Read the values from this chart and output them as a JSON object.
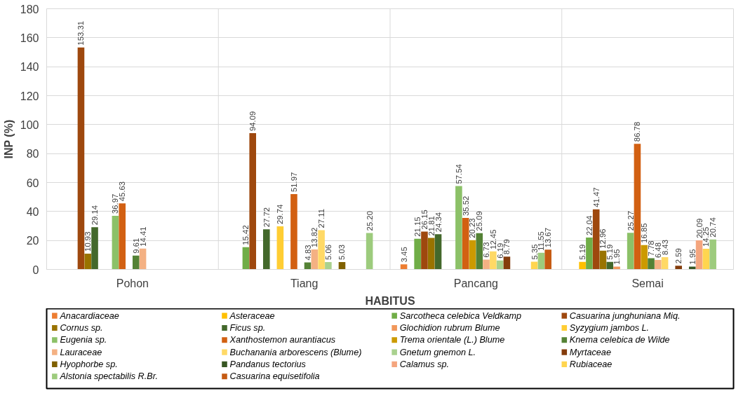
{
  "chart_data": {
    "type": "bar",
    "xlabel": "HABITUS",
    "ylabel": "INP (%)",
    "categories": [
      "Pohon",
      "Tiang",
      "Pancang",
      "Semai"
    ],
    "ylim": [
      0,
      180
    ],
    "yticks": [
      0,
      20,
      40,
      60,
      80,
      100,
      120,
      140,
      160,
      180
    ],
    "grid": true,
    "legend": "bottom",
    "data_labels": true,
    "series": [
      {
        "name": "Anacardiaceae",
        "color": "#ed7d31",
        "values": [
          null,
          null,
          3.45,
          null
        ]
      },
      {
        "name": "Asteraceae",
        "color": "#ffc000",
        "values": [
          null,
          null,
          null,
          5.19
        ]
      },
      {
        "name": "Sarcotheca celebica Veldkamp",
        "color": "#70ad47",
        "values": [
          null,
          15.42,
          21.15,
          22.04
        ]
      },
      {
        "name": "Casuarina junghuniana Miq.",
        "color": "#9e480e",
        "values": [
          153.31,
          94.09,
          26.15,
          41.47
        ]
      },
      {
        "name": "Cornus sp.",
        "color": "#997300",
        "values": [
          10.93,
          null,
          21.81,
          12.96
        ]
      },
      {
        "name": "Ficus sp.",
        "color": "#43682b",
        "values": [
          29.14,
          27.72,
          24.34,
          5.19
        ]
      },
      {
        "name": "Glochidion rubrum Blume",
        "color": "#f1975a",
        "values": [
          null,
          null,
          null,
          1.95
        ]
      },
      {
        "name": "Syzygium jambos L.",
        "color": "#ffcd33",
        "values": [
          null,
          29.74,
          null,
          null
        ]
      },
      {
        "name": "Eugenia sp.",
        "color": "#8cc168",
        "values": [
          36.97,
          null,
          57.54,
          25.27
        ]
      },
      {
        "name": "Xanthostemon aurantiacus",
        "color": "#d26012",
        "values": [
          45.63,
          51.97,
          35.52,
          86.78
        ]
      },
      {
        "name": "Trema orientale (L.) Blume",
        "color": "#cc9a00",
        "values": [
          null,
          null,
          20.23,
          16.85
        ]
      },
      {
        "name": "Knema celebica de Wilde",
        "color": "#548235",
        "values": [
          9.61,
          4.83,
          25.09,
          7.78
        ]
      },
      {
        "name": "Lauraceae",
        "color": "#f4b183",
        "values": [
          14.41,
          13.82,
          6.73,
          6.48
        ]
      },
      {
        "name": "Buchanania arborescens (Blume)",
        "color": "#ffd966",
        "values": [
          null,
          27.11,
          12.45,
          8.43
        ]
      },
      {
        "name": "Gnetum gnemon L.",
        "color": "#a9d18e",
        "values": [
          null,
          5.06,
          6.19,
          null
        ]
      },
      {
        "name": "Myrtaceae",
        "color": "#843c0c",
        "values": [
          null,
          null,
          8.79,
          2.59
        ]
      },
      {
        "name": "Hyophorbe sp.",
        "color": "#7f6000",
        "values": [
          null,
          5.03,
          null,
          null
        ]
      },
      {
        "name": "Pandanus tectorius",
        "color": "#375623",
        "values": [
          null,
          null,
          null,
          1.95
        ]
      },
      {
        "name": "Calamus sp.",
        "color": "#f4a57e",
        "values": [
          null,
          null,
          null,
          20.09
        ]
      },
      {
        "name": "Rubiaceae",
        "color": "#ffd54f",
        "values": [
          null,
          null,
          5.35,
          14.25
        ]
      },
      {
        "name": "Alstonia spectabilis R.Br.",
        "color": "#9dcb7d",
        "values": [
          null,
          25.2,
          11.55,
          20.74
        ],
        "value_labels": [
          null,
          "25.20",
          "11.55",
          "20.74"
        ]
      },
      {
        "name": "Casuarina equisetifolia",
        "color": "#c55a11",
        "values": [
          null,
          null,
          13.67,
          null
        ]
      }
    ]
  }
}
